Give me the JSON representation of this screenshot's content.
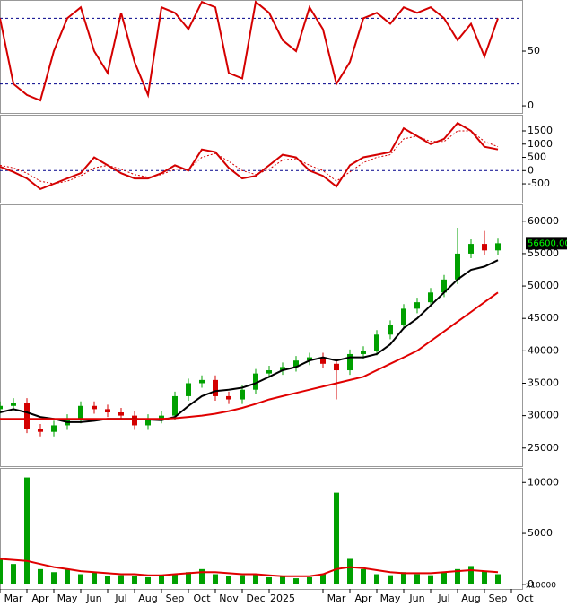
{
  "chart_data": [
    {
      "type": "line",
      "x": [
        0,
        0.5,
        1,
        1.5,
        2,
        2.5,
        3,
        3.5,
        4,
        4.5,
        5,
        5.5,
        6,
        6.5,
        7,
        7.5,
        8,
        8.5,
        9,
        9.5,
        10,
        10.5,
        11,
        11.5,
        12,
        12.5,
        13,
        13.5,
        14,
        14.5,
        15,
        15.5,
        16,
        16.5,
        17,
        17.5,
        18,
        18.5
      ],
      "xlim": [
        0,
        19.4
      ],
      "ylim": [
        -6.5,
        96.7
      ],
      "yticks": [
        0,
        50
      ],
      "levels": [
        20,
        80
      ],
      "series": [
        {
          "color": "#d40000",
          "values": [
            80,
            20,
            10,
            5,
            50,
            80,
            90,
            50,
            30,
            85,
            40,
            10,
            90,
            85,
            70,
            95,
            90,
            30,
            25,
            95,
            85,
            60,
            50,
            90,
            70,
            20,
            40,
            80,
            85,
            75,
            90,
            85,
            90,
            80,
            60,
            75,
            45,
            80
          ]
        }
      ]
    },
    {
      "type": "line",
      "x": [
        0,
        0.5,
        1,
        1.5,
        2,
        2.5,
        3,
        3.5,
        4,
        4.5,
        5,
        5.5,
        6,
        6.5,
        7,
        7.5,
        8,
        8.5,
        9,
        9.5,
        10,
        10.5,
        11,
        11.5,
        12,
        12.5,
        13,
        13.5,
        14,
        14.5,
        15,
        15.5,
        16,
        16.5,
        17,
        17.5,
        18,
        18.5
      ],
      "xlim": [
        0,
        19.4
      ],
      "ylim": [
        -1210,
        2110
      ],
      "yticks": [
        -500,
        0,
        500,
        1000,
        1500
      ],
      "levels": [
        0
      ],
      "series": [
        {
          "color": "#d40000",
          "values": [
            150,
            -50,
            -300,
            -700,
            -500,
            -300,
            -100,
            500,
            200,
            -100,
            -300,
            -300,
            -100,
            200,
            0,
            800,
            700,
            100,
            -300,
            -200,
            200,
            600,
            500,
            0,
            -200,
            -600,
            200,
            500,
            600,
            700,
            1600,
            1300,
            1000,
            1200,
            1800,
            1500,
            900,
            800
          ]
        },
        {
          "color": "#d40000",
          "dash": true,
          "values": [
            200,
            100,
            -100,
            -400,
            -500,
            -400,
            -200,
            100,
            200,
            50,
            -150,
            -250,
            -150,
            50,
            50,
            500,
            650,
            350,
            0,
            -150,
            50,
            400,
            450,
            200,
            0,
            -400,
            -50,
            300,
            500,
            600,
            1200,
            1300,
            1100,
            1100,
            1500,
            1500,
            1100,
            900
          ]
        }
      ]
    },
    {
      "type": "candlestick",
      "x": [
        0,
        0.5,
        1,
        1.5,
        2,
        2.5,
        3,
        3.5,
        4,
        4.5,
        5,
        5.5,
        6,
        6.5,
        7,
        7.5,
        8,
        8.5,
        9,
        9.5,
        10,
        10.5,
        11,
        11.5,
        12,
        12.5,
        13,
        13.5,
        14,
        14.5,
        15,
        15.5,
        16,
        16.5,
        17,
        17.5,
        18,
        18.5
      ],
      "xlim": [
        0,
        19.4
      ],
      "ylim": [
        22200,
        62600
      ],
      "yticks": [
        25000,
        30000,
        35000,
        40000,
        45000,
        50000,
        55000,
        60000
      ],
      "up_color": "#00a000",
      "down_color": "#d40000",
      "open": [
        31000,
        31500,
        32000,
        28000,
        27500,
        28500,
        29500,
        31500,
        31000,
        30500,
        30000,
        28500,
        29500,
        30000,
        33000,
        35000,
        35500,
        33000,
        32500,
        34000,
        36500,
        37000,
        37500,
        38500,
        39000,
        38000,
        37000,
        39500,
        40000,
        42500,
        44000,
        46500,
        47500,
        49000,
        51000,
        55000,
        56500,
        55500
      ],
      "high": [
        32200,
        32700,
        32700,
        28700,
        29200,
        30200,
        32200,
        32200,
        31700,
        31200,
        30700,
        30200,
        30700,
        33700,
        35700,
        36200,
        36200,
        33700,
        34700,
        37200,
        37700,
        38200,
        39200,
        39700,
        39700,
        38700,
        40200,
        40700,
        43200,
        44700,
        47200,
        48200,
        49700,
        51700,
        59000,
        57200,
        58500,
        57300
      ],
      "low": [
        30300,
        30800,
        27300,
        26800,
        26800,
        27800,
        28800,
        30300,
        29800,
        29300,
        27800,
        27800,
        28800,
        29300,
        32300,
        34300,
        32300,
        31800,
        31800,
        33300,
        35800,
        36300,
        36800,
        37800,
        37300,
        32500,
        36300,
        38800,
        39300,
        41800,
        43300,
        45800,
        46800,
        48300,
        50300,
        54300,
        54800,
        54800
      ],
      "close": [
        31500,
        32000,
        28000,
        27500,
        28500,
        29500,
        31500,
        31000,
        30500,
        30000,
        28500,
        29500,
        30000,
        33000,
        35000,
        35500,
        33000,
        32500,
        34000,
        36500,
        37000,
        37500,
        38500,
        39000,
        38000,
        37000,
        39500,
        40000,
        42500,
        44000,
        46500,
        47500,
        49000,
        51000,
        55000,
        56500,
        55500,
        56600
      ],
      "last_price": {
        "value": 56600,
        "label": "56600.00"
      },
      "series": [
        {
          "color": "#000000",
          "values": [
            30500,
            31000,
            30500,
            29800,
            29500,
            29000,
            29000,
            29200,
            29500,
            29500,
            29500,
            29400,
            29300,
            29800,
            31500,
            33000,
            33800,
            34000,
            34300,
            35000,
            36000,
            37000,
            37500,
            38500,
            39000,
            38500,
            39000,
            39000,
            39500,
            41000,
            43500,
            45000,
            47000,
            49000,
            51000,
            52500,
            53000,
            54000
          ]
        },
        {
          "color": "#e00000",
          "values": [
            29500,
            29500,
            29500,
            29500,
            29500,
            29500,
            29500,
            29500,
            29500,
            29500,
            29500,
            29500,
            29500,
            29600,
            29800,
            30000,
            30300,
            30700,
            31200,
            31800,
            32500,
            33000,
            33500,
            34000,
            34500,
            35000,
            35500,
            36000,
            37000,
            38000,
            39000,
            40000,
            41500,
            43000,
            44500,
            46000,
            47500,
            49000
          ]
        }
      ]
    },
    {
      "type": "bar",
      "x": [
        0,
        0.5,
        1,
        1.5,
        2,
        2.5,
        3,
        3.5,
        4,
        4.5,
        5,
        5.5,
        6,
        6.5,
        7,
        7.5,
        8,
        8.5,
        9,
        9.5,
        10,
        10.5,
        11,
        11.5,
        12,
        12.5,
        13,
        13.5,
        14,
        14.5,
        15,
        15.5,
        16,
        16.5,
        17,
        17.5,
        18,
        18.5
      ],
      "xlim": [
        0,
        19.4
      ],
      "ylim": [
        -450,
        11430
      ],
      "yticks": [
        0,
        5000,
        10000
      ],
      "unit_label": "x10000",
      "color": "#00a000",
      "values": [
        2500,
        2000,
        10500,
        1500,
        1200,
        1500,
        1000,
        1200,
        800,
        900,
        800,
        700,
        900,
        1000,
        1200,
        1500,
        1000,
        800,
        900,
        1000,
        700,
        800,
        600,
        700,
        1000,
        9000,
        2500,
        1500,
        1000,
        900,
        1200,
        1000,
        900,
        1200,
        1500,
        1800,
        1300,
        1000
      ],
      "series": [
        {
          "color": "#e00000",
          "values": [
            2500,
            2400,
            2300,
            2000,
            1700,
            1500,
            1300,
            1200,
            1100,
            1000,
            1000,
            900,
            900,
            1000,
            1100,
            1200,
            1200,
            1100,
            1000,
            1000,
            900,
            800,
            800,
            800,
            1000,
            1500,
            1700,
            1600,
            1400,
            1200,
            1100,
            1100,
            1100,
            1200,
            1300,
            1400,
            1300,
            1200
          ]
        }
      ],
      "xticks": [
        {
          "value": 0,
          "label": "Mar"
        },
        {
          "value": 1,
          "label": "Apr"
        },
        {
          "value": 2,
          "label": "May"
        },
        {
          "value": 3,
          "label": "Jun"
        },
        {
          "value": 4,
          "label": "Jul"
        },
        {
          "value": 5,
          "label": "Aug"
        },
        {
          "value": 6,
          "label": "Sep"
        },
        {
          "value": 7,
          "label": "Oct"
        },
        {
          "value": 8,
          "label": "Nov"
        },
        {
          "value": 9,
          "label": "Dec"
        },
        {
          "value": 10,
          "label": "2025"
        },
        {
          "value": 12,
          "label": "Mar"
        },
        {
          "value": 13,
          "label": "Apr"
        },
        {
          "value": 14,
          "label": "May"
        },
        {
          "value": 15,
          "label": "Jun"
        },
        {
          "value": 16,
          "label": "Jul"
        },
        {
          "value": 17,
          "label": "Aug"
        },
        {
          "value": 18,
          "label": "Sep"
        },
        {
          "value": 19,
          "label": "Oct"
        }
      ]
    }
  ]
}
